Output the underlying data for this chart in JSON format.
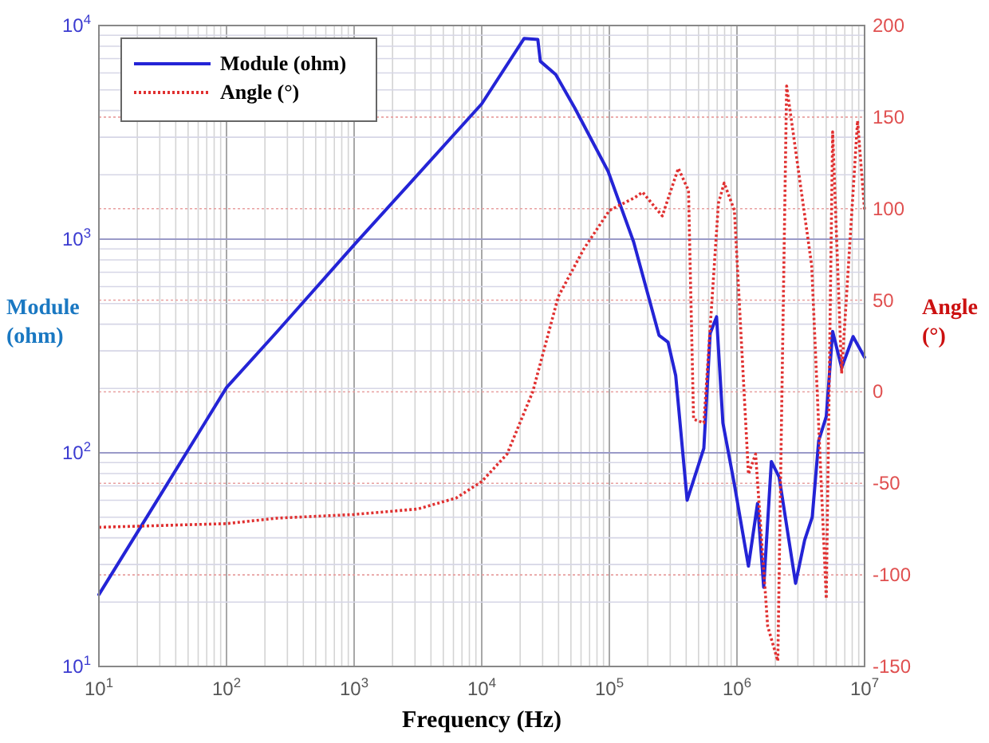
{
  "chart_data": {
    "type": "line",
    "xlabel": "Frequency (Hz)",
    "ylabel": "Module (ohm)",
    "y2label": "Angle (°)",
    "log": "xy",
    "grid": true,
    "legend": "top left",
    "xlim": [
      10,
      10000000
    ],
    "xticks": [
      {
        "value": 10,
        "label": "10$^{1}$"
      },
      {
        "value": 100,
        "label": "10$^{2}$"
      },
      {
        "value": 1000,
        "label": "10$^{3}$"
      },
      {
        "value": 10000,
        "label": "10$^{4}$"
      },
      {
        "value": 100000,
        "label": "10$^{5}$"
      },
      {
        "value": 1000000,
        "label": "10$^{6}$"
      },
      {
        "value": 10000000,
        "label": "10$^{7}$"
      }
    ],
    "ylim": [
      10,
      10000
    ],
    "yticks": [
      {
        "value": 10,
        "label": "10$^{1}$"
      },
      {
        "value": 100,
        "label": "10$^{2}$"
      },
      {
        "value": 1000,
        "label": "10$^{3}$"
      },
      {
        "value": 10000,
        "label": "10$^{4}$"
      }
    ],
    "y2lim": [
      -150,
      200
    ],
    "y2ticks": [
      -150,
      -100,
      -50,
      0,
      50,
      100,
      150,
      200
    ],
    "series": [
      {
        "name": "Module (ohm)",
        "color": "#2424d6",
        "line_style": "solid",
        "x": [
          10,
          31.6,
          100,
          250,
          1000,
          10000,
          21500,
          27500,
          28800,
          38000,
          53700,
          97700,
          155000,
          245000,
          288000,
          331000,
          407000,
          550000,
          617000,
          692000,
          776000,
          955000,
          1230000,
          1450000,
          1620000,
          1860000,
          2140000,
          2880000,
          3390000,
          3890000,
          4370000,
          5010000,
          5620000,
          6610000,
          8130000,
          10000000
        ],
        "values": [
          21.7,
          66,
          202,
          370,
          940,
          4300,
          8700,
          8600,
          6800,
          5900,
          4100,
          2080,
          970,
          355,
          330,
          230,
          60,
          105,
          363,
          433,
          138,
          71,
          29.5,
          58,
          23.5,
          91,
          77,
          24.5,
          39,
          50,
          114,
          148,
          370,
          250,
          350,
          280
        ]
      },
      {
        "name": "Angle (°)",
        "color": "#e03030",
        "line_style": "dotted",
        "axis": "y2",
        "x": [
          10,
          100,
          250,
          1000,
          3160,
          6300,
          10000,
          15800,
          25100,
          39800,
          63100,
          100000,
          158000,
          182000,
          260000,
          347000,
          417000,
          457000,
          550000,
          716000,
          794000,
          955000,
          1230000,
          1400000,
          1740000,
          2090000,
          2450000,
          3850000,
          5010000,
          5620000,
          6610000,
          8810000,
          10000000
        ],
        "values": [
          -74,
          -72,
          -69,
          -67,
          -64,
          -58,
          -49,
          -34,
          0,
          52,
          78,
          99,
          106,
          109,
          96,
          122,
          110,
          -15,
          -17,
          103,
          114,
          99,
          -45,
          -34,
          -128,
          -147,
          167,
          69,
          -113,
          142,
          10,
          148,
          99
        ]
      }
    ]
  }
}
